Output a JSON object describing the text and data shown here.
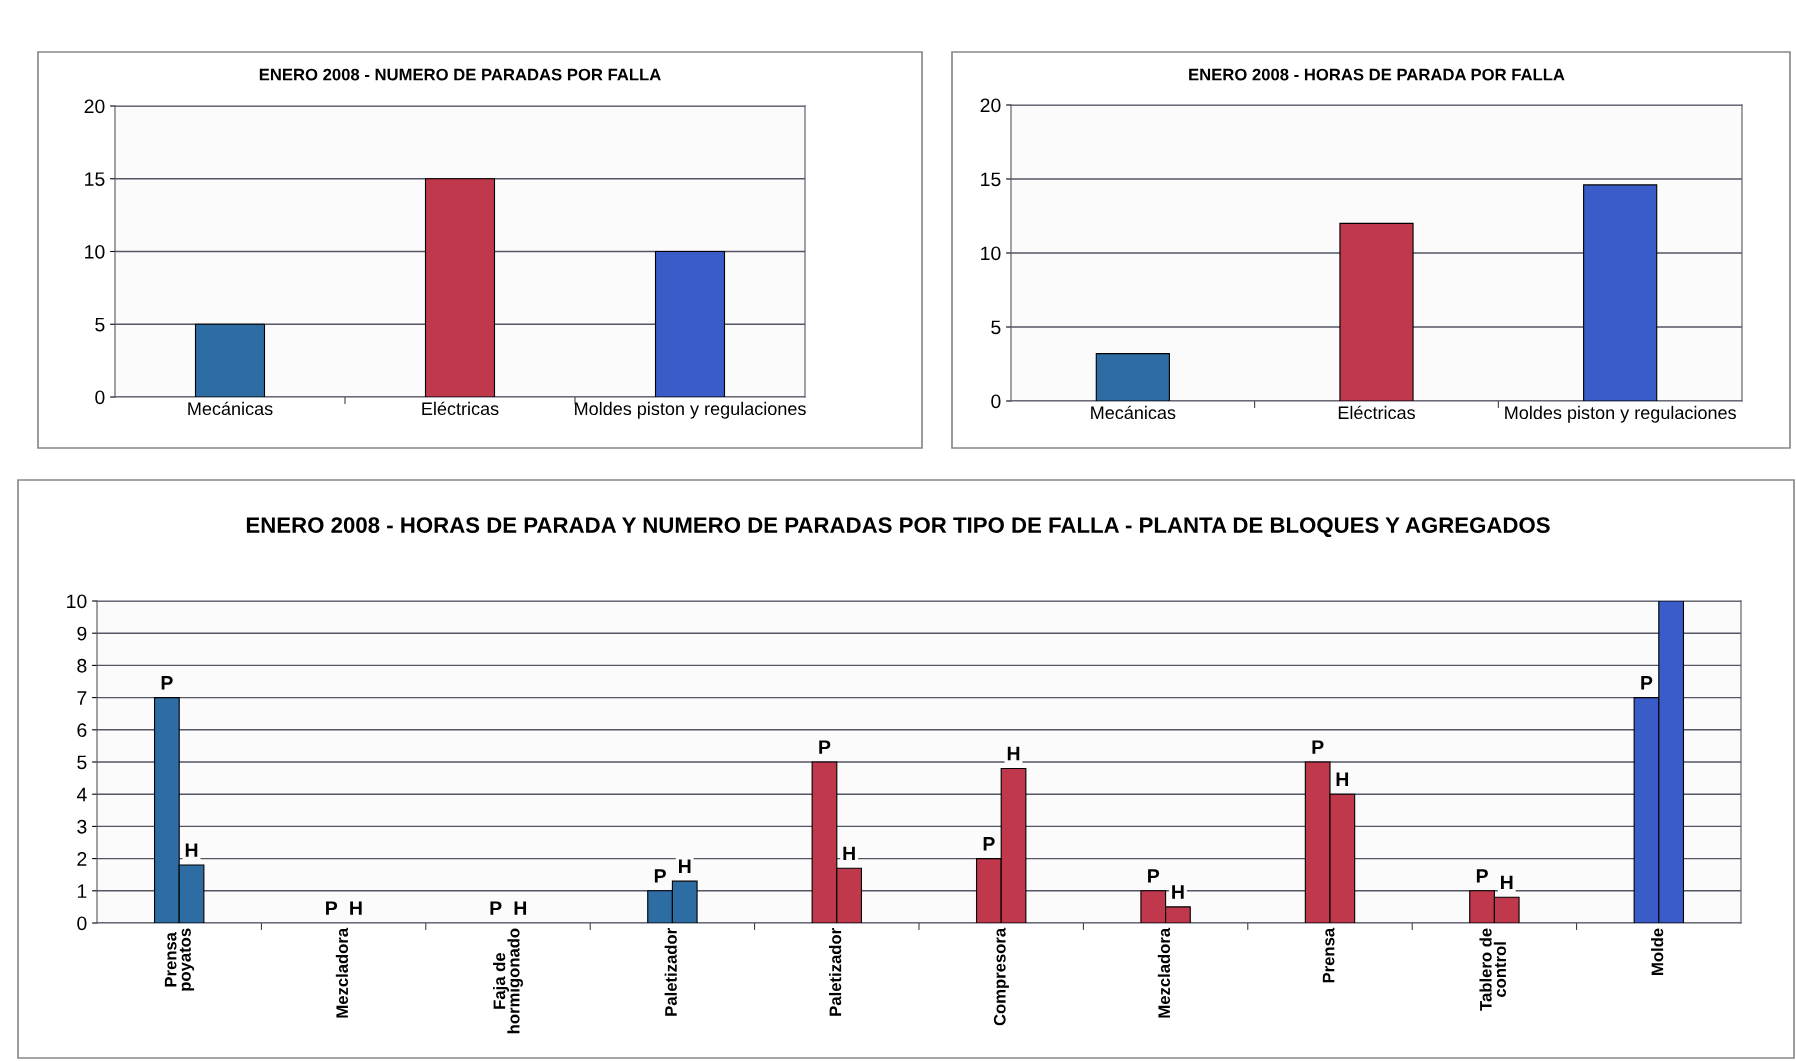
{
  "chart_data": [
    {
      "type": "bar",
      "title": "ENERO 2008 - NUMERO DE PARADAS POR FALLA",
      "categories": [
        "Mecánicas",
        "Eléctricas",
        "Moldes piston y regulaciones"
      ],
      "values": [
        5,
        15,
        10
      ],
      "colors": [
        "#2e6da4",
        "#c0384c",
        "#3a5cc8"
      ],
      "ylim": [
        0,
        20
      ],
      "yticks": [
        0,
        5,
        10,
        15,
        20
      ],
      "grid": "y",
      "legend": false
    },
    {
      "type": "bar",
      "title": "ENERO 2008 - HORAS DE PARADA POR FALLA",
      "categories": [
        "Mecánicas",
        "Eléctricas",
        "Moldes piston y regulaciones"
      ],
      "values": [
        3.2,
        12,
        14.6
      ],
      "colors": [
        "#2e6da4",
        "#c0384c",
        "#3a5cc8"
      ],
      "ylim": [
        0,
        20
      ],
      "yticks": [
        0,
        5,
        10,
        15,
        20
      ],
      "grid": "y",
      "legend": false
    },
    {
      "type": "bar",
      "title": "ENERO 2008 - HORAS DE PARADA Y NUMERO DE PARADAS POR TIPO DE FALLA - PLANTA DE BLOQUES Y AGREGADOS",
      "categories": [
        "Prensa\npoyatos",
        "Mezcladora",
        "Faja de\nhormigonado",
        "Paletizador",
        "Paletizador",
        "Compresora",
        "Mezcladora",
        "Prensa",
        "Tablero de\ncontrol",
        "Molde"
      ],
      "series": [
        {
          "name": "P",
          "colors": [
            "#2e6da4",
            "#2e6da4",
            "#2e6da4",
            "#2e6da4",
            "#c0384c",
            "#c0384c",
            "#c0384c",
            "#c0384c",
            "#c0384c",
            "#3a5cc8"
          ],
          "values": [
            7,
            0,
            0,
            1,
            5,
            2,
            1,
            5,
            1,
            7
          ]
        },
        {
          "name": "H",
          "colors": [
            "#2e6da4",
            "#2e6da4",
            "#2e6da4",
            "#2e6da4",
            "#c0384c",
            "#c0384c",
            "#c0384c",
            "#c0384c",
            "#c0384c",
            "#3a5cc8"
          ],
          "values": [
            1.8,
            0,
            0,
            1.3,
            1.7,
            4.8,
            0.5,
            4,
            0.8,
            10
          ]
        }
      ],
      "ylim": [
        0,
        10
      ],
      "yticks": [
        0,
        1,
        2,
        3,
        4,
        5,
        6,
        7,
        8,
        9,
        10
      ],
      "grid": "y",
      "legend": false
    }
  ]
}
